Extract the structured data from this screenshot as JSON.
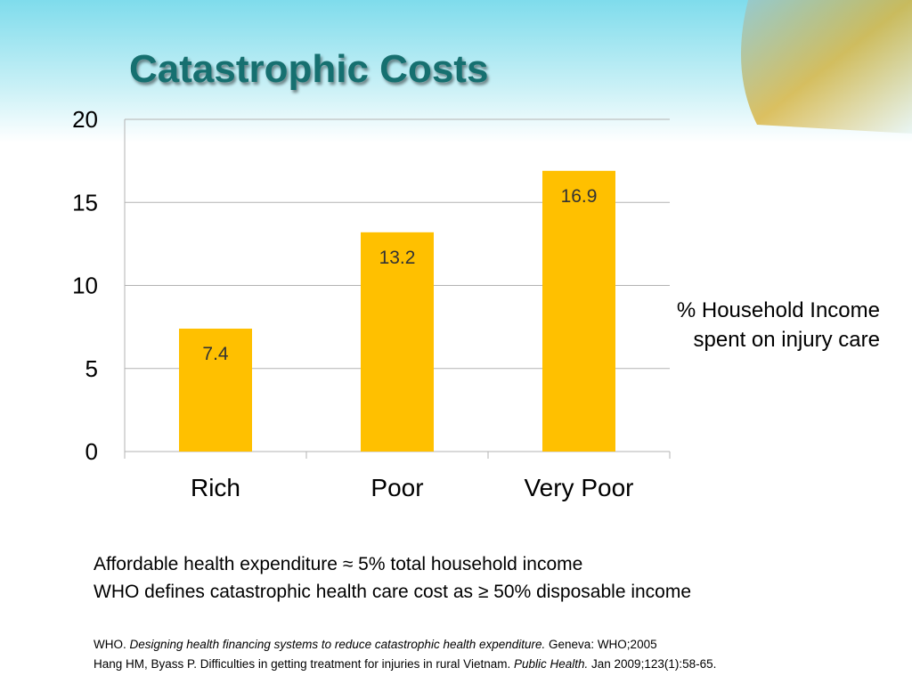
{
  "chart_data": {
    "type": "bar",
    "title": "Catastrophic Costs",
    "categories": [
      "Rich",
      "Poor",
      "Very Poor"
    ],
    "values": [
      7.4,
      13.2,
      16.9
    ],
    "color": "#ffc000",
    "ylim": [
      0,
      20
    ],
    "yticks": [
      0,
      5,
      10,
      15,
      20
    ],
    "grid": true,
    "annotation": [
      "% Household Income",
      "spent on injury care"
    ],
    "notes": [
      "Affordable health expenditure ≈ 5% total household income",
      "WHO defines catastrophic health care cost as ≥ 50% disposable income"
    ],
    "references": [
      [
        {
          "text": "WHO. ",
          "italic": false
        },
        {
          "text": "Designing health financing systems to reduce catastrophic health expenditure.",
          "italic": true
        },
        {
          "text": " Geneva: WHO;2005",
          "italic": false
        }
      ],
      [
        {
          "text": "Hang HM, Byass P. Difficulties in getting treatment for injuries in rural Vietnam. ",
          "italic": false
        },
        {
          "text": "Public Health.",
          "italic": true
        },
        {
          "text": " Jan 2009;123(1):58-65.",
          "italic": false
        }
      ]
    ]
  }
}
